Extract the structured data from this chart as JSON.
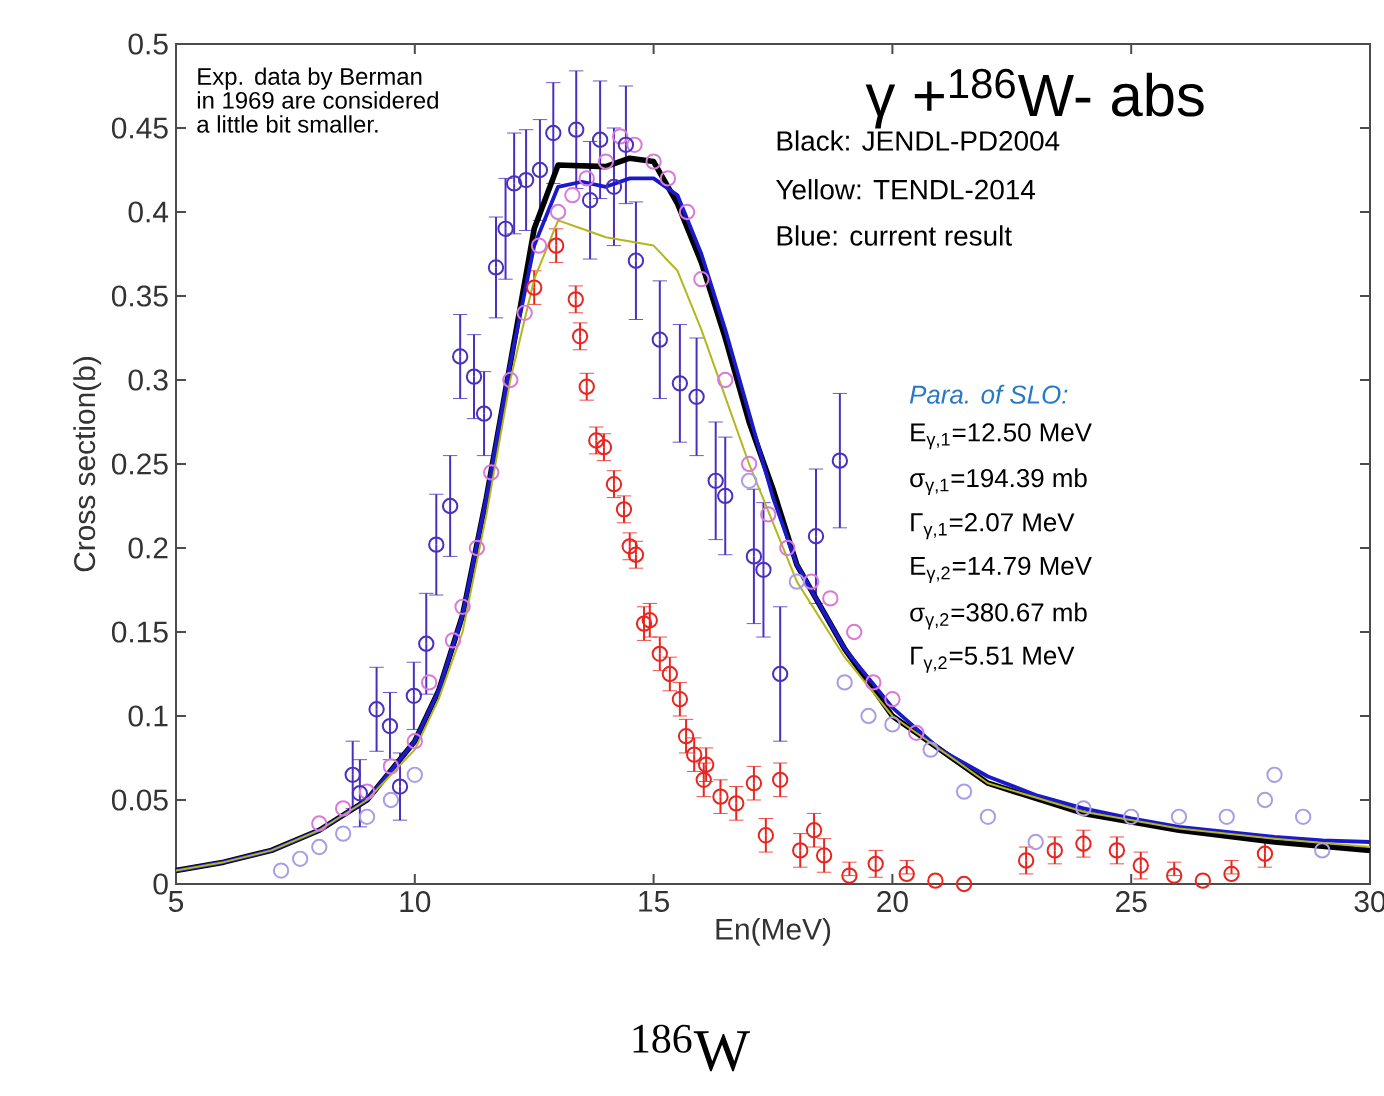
{
  "chart_data": {
    "type": "line",
    "title": "γ +$^{186}$W- abs",
    "xlabel": "En(MeV)",
    "ylabel": "Cross section(b)",
    "xlim": [
      5,
      30
    ],
    "xticks": [
      5,
      10,
      15,
      20,
      25,
      30
    ],
    "ylim": [
      0,
      0.5
    ],
    "yticks": [
      0,
      0.05,
      0.1,
      0.15,
      0.2,
      0.25,
      0.3,
      0.35,
      0.4,
      0.45,
      0.5
    ],
    "grid": false,
    "annotations": [
      "Exp. data by Berman in 1969 are considered a little bit smaller.",
      "Black: JENDL-PD2004",
      "Yellow: TENDL-2014",
      "Blue: current result",
      "Para. of SLO:",
      "E$_{γ,1}$=12.50 MeV",
      "σ$_{γ,1}$=194.39 mb",
      "Γ$_{γ,1}$=2.07 MeV",
      "E$_{γ,2}$=14.79 MeV",
      "σ$_{γ,2}$=380.67 mb",
      "Γ$_{γ,2}$=5.51 MeV",
      "$^{186}$W"
    ],
    "series": [
      {
        "type": "scatter",
        "marker": "circle",
        "color": "#d97ad9",
        "x": [
          8,
          8.5,
          9,
          9.5,
          10,
          10.3,
          10.8,
          11,
          11.3,
          11.6,
          12,
          12.3,
          12.6,
          13,
          13.3,
          13.6,
          14,
          14.3,
          14.6,
          15,
          15.3,
          15.7,
          16,
          16.5,
          17,
          17.4,
          17.8,
          18.3,
          18.7,
          19.2,
          19.6,
          20,
          20.5
        ],
        "values": [
          0.036,
          0.045,
          0.055,
          0.07,
          0.085,
          0.12,
          0.145,
          0.165,
          0.2,
          0.245,
          0.3,
          0.34,
          0.38,
          0.4,
          0.41,
          0.42,
          0.43,
          0.445,
          0.44,
          0.43,
          0.42,
          0.4,
          0.36,
          0.3,
          0.25,
          0.22,
          0.2,
          0.18,
          0.17,
          0.15,
          0.12,
          0.11,
          0.09
        ]
      },
      {
        "type": "scatter",
        "marker": "circle",
        "color": "#aa9ce6",
        "x": [
          7.2,
          7.6,
          8,
          8.5,
          9,
          9.5,
          10,
          17,
          18,
          19,
          19.5,
          20,
          20.8,
          21.5,
          22,
          23,
          24,
          25,
          26,
          27,
          27.8,
          28,
          28.6,
          29
        ],
        "values": [
          0.008,
          0.015,
          0.022,
          0.03,
          0.04,
          0.05,
          0.065,
          0.24,
          0.18,
          0.12,
          0.1,
          0.095,
          0.08,
          0.055,
          0.04,
          0.025,
          0.045,
          0.04,
          0.04,
          0.04,
          0.05,
          0.065,
          0.04,
          0.02
        ]
      },
      {
        "type": "scatter",
        "marker": "circle",
        "color": "#4b2fbf",
        "x": [
          8.7,
          8.85,
          9.2,
          9.48,
          9.69,
          9.98,
          10.24,
          10.45,
          10.74,
          10.95,
          11.24,
          11.45,
          11.7,
          11.9,
          12.08,
          12.33,
          12.62,
          12.9,
          13.38,
          13.67,
          13.88,
          14.17,
          14.42,
          14.63,
          15.13,
          15.55,
          15.9,
          16.3,
          16.5,
          17.1,
          17.3,
          17.65,
          18.4,
          18.9
        ],
        "values": [
          0.065,
          0.054,
          0.104,
          0.094,
          0.058,
          0.112,
          0.143,
          0.202,
          0.225,
          0.314,
          0.302,
          0.28,
          0.367,
          0.39,
          0.417,
          0.419,
          0.425,
          0.447,
          0.449,
          0.407,
          0.443,
          0.415,
          0.44,
          0.371,
          0.324,
          0.298,
          0.29,
          0.24,
          0.231,
          0.195,
          0.187,
          0.125,
          0.207,
          0.252
        ],
        "errors": [
          0.02,
          0.02,
          0.025,
          0.02,
          0.02,
          0.02,
          0.03,
          0.03,
          0.03,
          0.025,
          0.025,
          0.025,
          0.03,
          0.03,
          0.03,
          0.03,
          0.03,
          0.03,
          0.035,
          0.035,
          0.035,
          0.035,
          0.035,
          0.035,
          0.035,
          0.035,
          0.035,
          0.035,
          0.035,
          0.04,
          0.04,
          0.04,
          0.04,
          0.04
        ]
      },
      {
        "type": "scatter",
        "marker": "circle",
        "color": "#e8251f",
        "x": [
          12.5,
          12.96,
          13.37,
          13.46,
          13.6,
          13.8,
          13.96,
          14.17,
          14.38,
          14.5,
          14.63,
          14.8,
          14.92,
          15.13,
          15.34,
          15.55,
          15.68,
          15.85,
          16.05,
          16.1,
          16.4,
          16.73,
          17.1,
          17.35,
          17.65,
          18.07,
          18.36,
          18.57,
          19.1,
          19.65,
          20.3,
          20.9,
          21.5,
          22.8,
          23.4,
          24,
          24.7,
          25.2,
          25.9,
          26.5,
          27.1,
          27.8
        ],
        "values": [
          0.355,
          0.38,
          0.348,
          0.326,
          0.296,
          0.264,
          0.26,
          0.238,
          0.223,
          0.201,
          0.196,
          0.155,
          0.157,
          0.137,
          0.125,
          0.11,
          0.088,
          0.077,
          0.062,
          0.071,
          0.052,
          0.048,
          0.06,
          0.029,
          0.062,
          0.02,
          0.032,
          0.017,
          0.005,
          0.012,
          0.006,
          0.002,
          0,
          0.014,
          0.02,
          0.024,
          0.02,
          0.011,
          0.005,
          0.002,
          0.006,
          0.018
        ],
        "errors": [
          0.01,
          0.01,
          0.008,
          0.008,
          0.008,
          0.008,
          0.008,
          0.008,
          0.008,
          0.008,
          0.008,
          0.01,
          0.01,
          0.01,
          0.01,
          0.01,
          0.01,
          0.01,
          0.01,
          0.01,
          0.01,
          0.01,
          0.01,
          0.01,
          0.01,
          0.01,
          0.01,
          0.01,
          [
            0.005,
            0.013
          ],
          0.008,
          [
            0.006,
            0.014
          ],
          null,
          null,
          0.008,
          0.008,
          0.008,
          0.008,
          0.008,
          [
            0.005,
            0.013
          ],
          null,
          [
            0.006,
            0.014
          ],
          0.008
        ]
      },
      {
        "line_style": "solid",
        "color": "#000000",
        "x": [
          5,
          6,
          7,
          8,
          9,
          10,
          10.5,
          11,
          11.5,
          12,
          12.5,
          13,
          14,
          14.5,
          15,
          15.5,
          16,
          16.5,
          17,
          17.5,
          18,
          19,
          20,
          22,
          24,
          26,
          28,
          30
        ],
        "values": [
          0.008,
          0.013,
          0.02,
          0.032,
          0.05,
          0.085,
          0.115,
          0.16,
          0.23,
          0.31,
          0.39,
          0.428,
          0.427,
          0.432,
          0.43,
          0.405,
          0.37,
          0.325,
          0.275,
          0.235,
          0.19,
          0.14,
          0.1,
          0.06,
          0.042,
          0.032,
          0.025,
          0.02
        ]
      },
      {
        "line_style": "solid",
        "color": "#1a1acc",
        "x": [
          5,
          6,
          7,
          8,
          9,
          10,
          10.5,
          11,
          11.5,
          12,
          12.5,
          13,
          13.5,
          14,
          14.5,
          15,
          15.5,
          16,
          16.5,
          17,
          17.5,
          18,
          19,
          20,
          21,
          22,
          23,
          24,
          25,
          26,
          27,
          28,
          29,
          30
        ],
        "values": [
          0.008,
          0.013,
          0.02,
          0.032,
          0.05,
          0.085,
          0.115,
          0.16,
          0.23,
          0.31,
          0.38,
          0.415,
          0.418,
          0.415,
          0.42,
          0.42,
          0.41,
          0.375,
          0.33,
          0.28,
          0.23,
          0.19,
          0.14,
          0.105,
          0.08,
          0.064,
          0.053,
          0.045,
          0.039,
          0.034,
          0.031,
          0.028,
          0.026,
          0.025
        ]
      },
      {
        "line_style": "solid",
        "color": "#b5b520",
        "x": [
          5,
          6,
          7,
          8,
          9,
          10,
          10.5,
          11,
          11.5,
          12,
          12.5,
          13,
          13.5,
          14,
          15,
          15.5,
          16,
          16.5,
          17,
          17.5,
          18,
          19,
          20,
          22,
          24,
          26,
          28,
          30
        ],
        "values": [
          0.008,
          0.013,
          0.02,
          0.032,
          0.05,
          0.08,
          0.11,
          0.15,
          0.22,
          0.3,
          0.36,
          0.395,
          0.39,
          0.385,
          0.38,
          0.365,
          0.33,
          0.29,
          0.25,
          0.215,
          0.18,
          0.135,
          0.1,
          0.06,
          0.043,
          0.033,
          0.027,
          0.022
        ]
      }
    ]
  }
}
